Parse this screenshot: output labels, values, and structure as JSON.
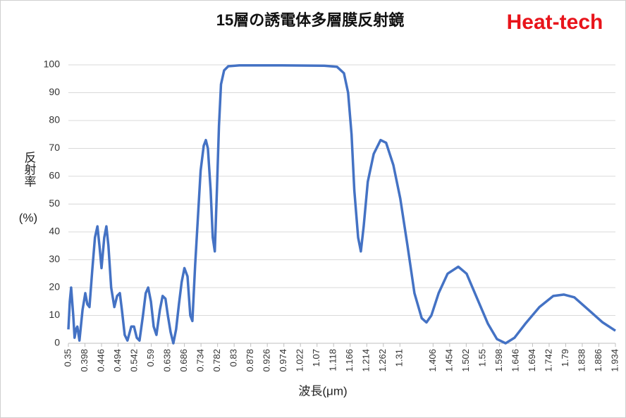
{
  "chart_data": {
    "type": "line",
    "title": "15層の誘電体多層膜反射鏡",
    "logo": "Heat-tech",
    "x_label": "波長(μm)",
    "y_label": "反射率",
    "y_unit": "(%)",
    "xlim": [
      0.35,
      1.934
    ],
    "ylim": [
      0,
      100
    ],
    "yticks": [
      0,
      10,
      20,
      30,
      40,
      50,
      60,
      70,
      80,
      90,
      100
    ],
    "xticks": [
      0.35,
      0.398,
      0.446,
      0.494,
      0.542,
      0.59,
      0.638,
      0.686,
      0.734,
      0.782,
      0.83,
      0.878,
      0.926,
      0.974,
      1.022,
      1.07,
      1.118,
      1.166,
      1.214,
      1.262,
      1.31,
      1.406,
      1.454,
      1.502,
      1.55,
      1.598,
      1.646,
      1.694,
      1.742,
      1.79,
      1.838,
      1.886,
      1.934
    ],
    "grid": true,
    "series": [
      {
        "color": "#4472c4",
        "x": [
          0.35,
          0.354,
          0.358,
          0.364,
          0.368,
          0.372,
          0.376,
          0.382,
          0.391,
          0.399,
          0.405,
          0.411,
          0.419,
          0.427,
          0.434,
          0.44,
          0.446,
          0.454,
          0.46,
          0.466,
          0.474,
          0.483,
          0.491,
          0.499,
          0.505,
          0.513,
          0.521,
          0.532,
          0.54,
          0.548,
          0.556,
          0.566,
          0.574,
          0.581,
          0.589,
          0.597,
          0.605,
          0.615,
          0.623,
          0.631,
          0.638,
          0.646,
          0.654,
          0.662,
          0.67,
          0.678,
          0.686,
          0.695,
          0.703,
          0.709,
          0.717,
          0.725,
          0.733,
          0.742,
          0.748,
          0.754,
          0.762,
          0.768,
          0.774,
          0.78,
          0.786,
          0.792,
          0.801,
          0.813,
          0.845,
          0.968,
          1.091,
          1.128,
          1.148,
          1.16,
          1.17,
          1.178,
          1.189,
          1.197,
          1.205,
          1.217,
          1.234,
          1.254,
          1.27,
          1.291,
          1.311,
          1.332,
          1.352,
          1.373,
          1.387,
          1.401,
          1.422,
          1.448,
          1.479,
          1.503,
          1.534,
          1.565,
          1.591,
          1.616,
          1.642,
          1.673,
          1.714,
          1.754,
          1.785,
          1.815,
          1.856,
          1.897,
          1.934
        ],
        "values": [
          5,
          15,
          20,
          10,
          2,
          5,
          6,
          1,
          12,
          18,
          14,
          13,
          26,
          38,
          42,
          35,
          27,
          38,
          42,
          35,
          20,
          13,
          17,
          18,
          12,
          3,
          1,
          6,
          6,
          2,
          1,
          10,
          18,
          20,
          15,
          6,
          3,
          12,
          17,
          16,
          10,
          4,
          0,
          5,
          14,
          22,
          27,
          24,
          10,
          8,
          28,
          45,
          62,
          71,
          73,
          70,
          55,
          38,
          33,
          55,
          78,
          93,
          98,
          99.5,
          99.8,
          99.8,
          99.7,
          99.3,
          97,
          90,
          75,
          55,
          38,
          33,
          42,
          58,
          68,
          73,
          72,
          64,
          52,
          35,
          18,
          9,
          7.5,
          10,
          18,
          25,
          27.5,
          25,
          16,
          7,
          1.5,
          0,
          2,
          7,
          13,
          17,
          17.5,
          16.5,
          12,
          7.5,
          4.5
        ]
      }
    ]
  }
}
